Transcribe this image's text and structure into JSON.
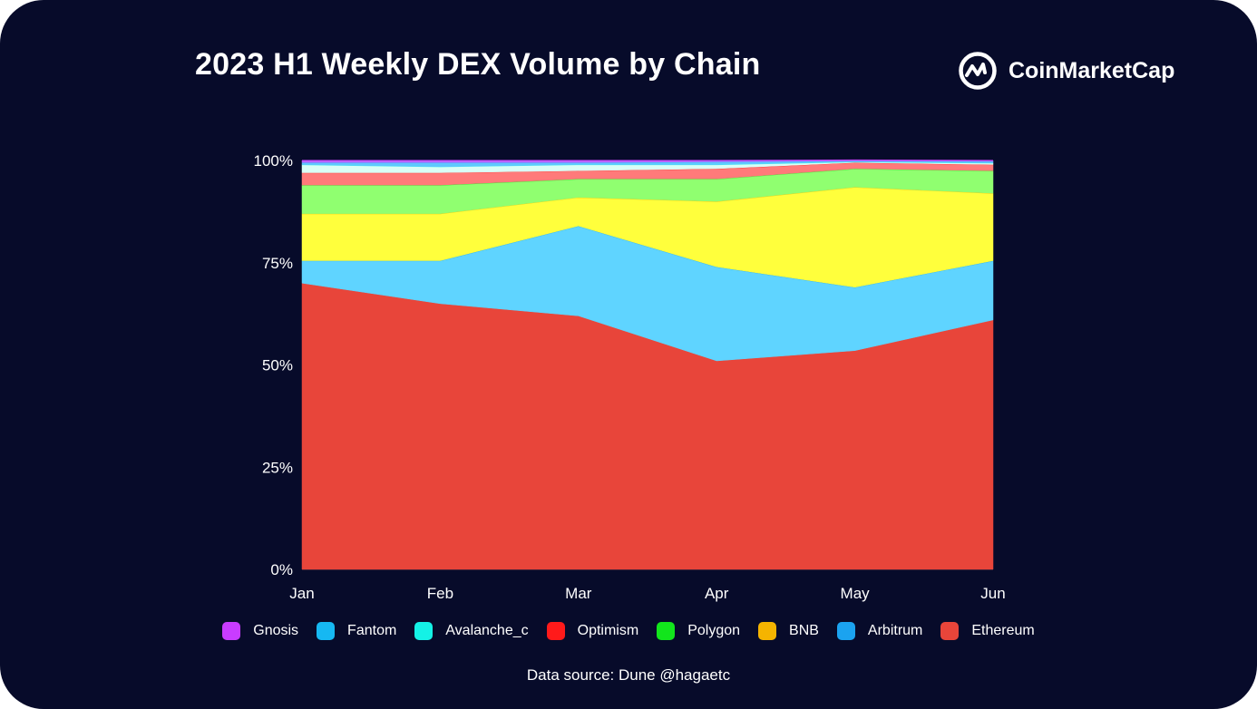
{
  "title": "2023 H1 Weekly DEX Volume by Chain",
  "brand": {
    "name": "CoinMarketCap",
    "icon": "coinmarketcap-logo-icon"
  },
  "source": "Data source: Dune @hagaetc",
  "colors": {
    "background": "#070b2a",
    "text": "#ffffff"
  },
  "chart_data": {
    "type": "area",
    "stacked": true,
    "normalized": true,
    "categories": [
      "Jan",
      "Feb",
      "Mar",
      "Apr",
      "May",
      "Jun"
    ],
    "yticks": [
      "0%",
      "25%",
      "50%",
      "75%",
      "100%"
    ],
    "ylim": [
      0,
      100
    ],
    "grid": true,
    "legend_position": "bottom",
    "series": [
      {
        "name": "Ethereum",
        "color": "#e8453a",
        "legend_color": "#e8453a",
        "values": [
          70.0,
          65.0,
          62.0,
          51.0,
          53.5,
          61.0
        ]
      },
      {
        "name": "Arbitrum",
        "color": "#5fd4ff",
        "legend_color": "#1ba3f0",
        "values": [
          5.5,
          10.5,
          22.0,
          23.0,
          15.5,
          14.5
        ]
      },
      {
        "name": "BNB",
        "color": "#ffff3c",
        "legend_color": "#f5b400",
        "values": [
          11.5,
          11.5,
          7.0,
          16.0,
          24.5,
          16.5
        ]
      },
      {
        "name": "Polygon",
        "color": "#90ff70",
        "legend_color": "#12e51c",
        "values": [
          7.0,
          7.0,
          4.5,
          5.5,
          4.5,
          5.5
        ]
      },
      {
        "name": "Optimism",
        "color": "#ff7a7a",
        "legend_color": "#ff1a1a",
        "values": [
          3.0,
          3.0,
          2.0,
          2.5,
          1.5,
          1.5
        ]
      },
      {
        "name": "Avalanche_c",
        "color": "#d9fff6",
        "legend_color": "#14f2e6",
        "values": [
          2.0,
          1.5,
          1.5,
          1.0,
          0.2,
          0.4
        ]
      },
      {
        "name": "Fantom",
        "color": "#5fc8ff",
        "legend_color": "#16b8f2",
        "values": [
          0.5,
          1.0,
          0.5,
          0.7,
          0.2,
          0.4
        ]
      },
      {
        "name": "Gnosis",
        "color": "#b86cff",
        "legend_color": "#c93cff",
        "values": [
          0.5,
          0.5,
          0.5,
          0.3,
          0.2,
          0.2
        ]
      }
    ],
    "legend_order": [
      "Gnosis",
      "Fantom",
      "Avalanche_c",
      "Optimism",
      "Polygon",
      "BNB",
      "Arbitrum",
      "Ethereum"
    ]
  }
}
